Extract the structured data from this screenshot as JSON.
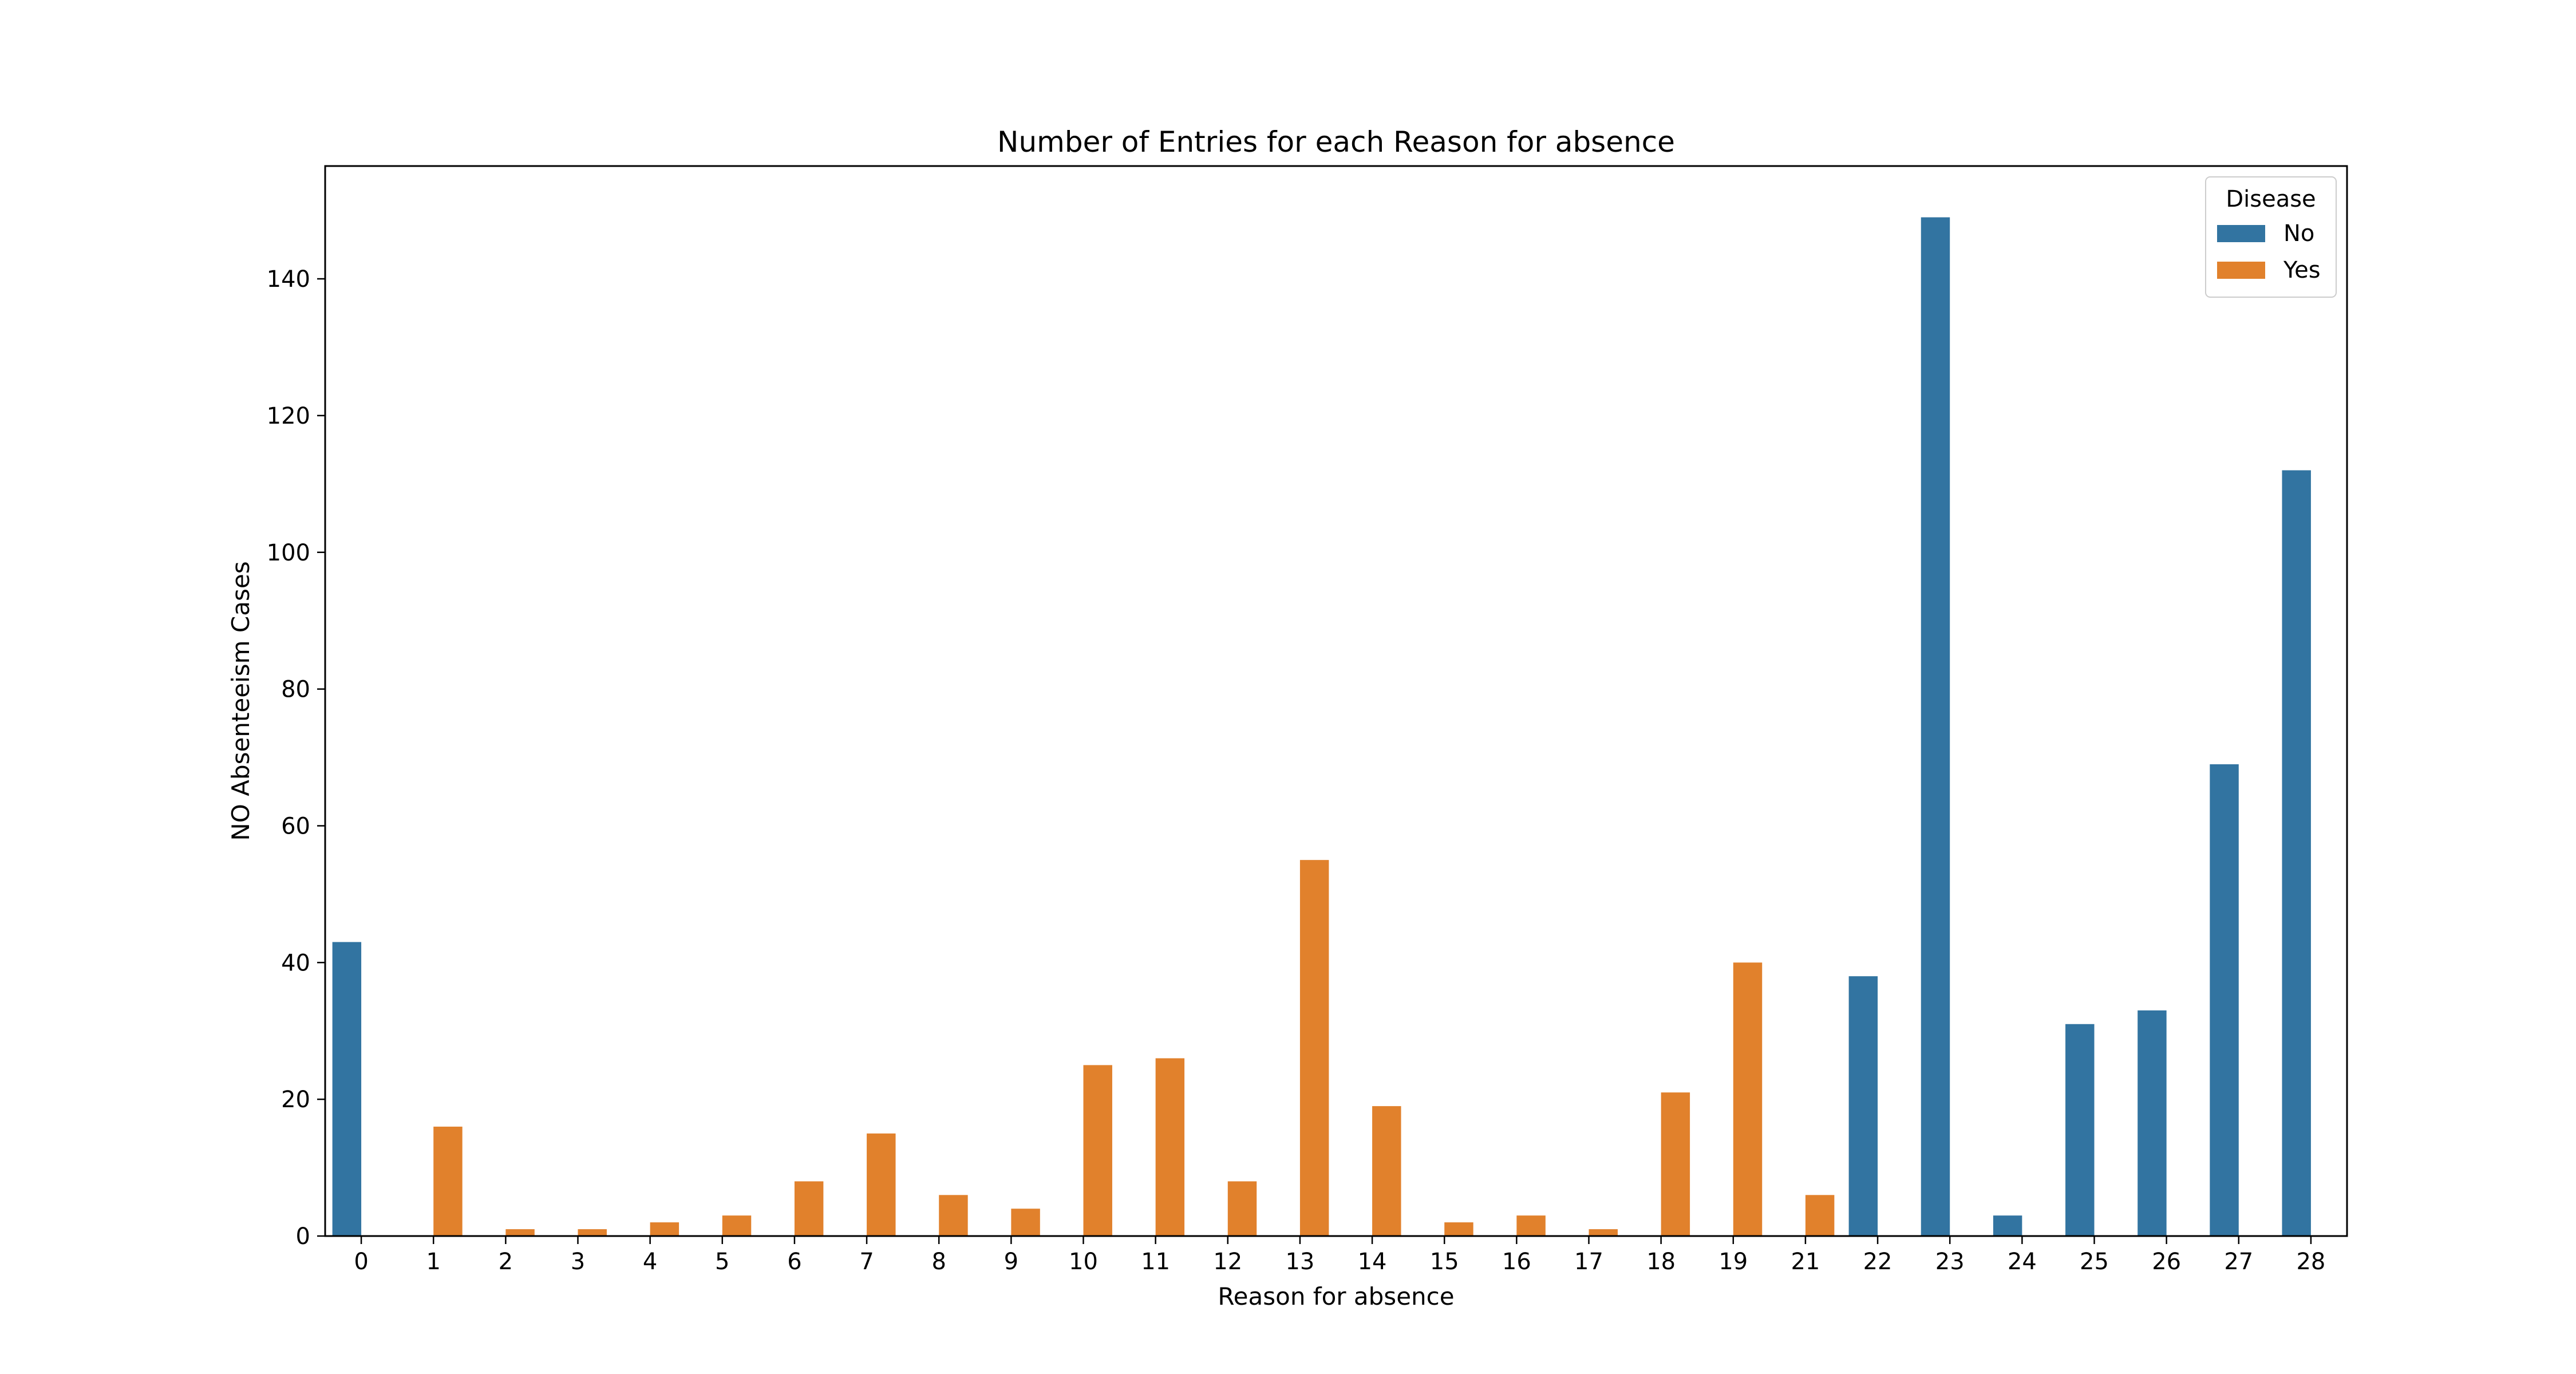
{
  "chart_data": {
    "type": "bar",
    "title": "Number of Entries for each Reason for absence",
    "xlabel": "Reason for absence",
    "ylabel": "NO Absenteeism Cases",
    "categories": [
      "0",
      "1",
      "2",
      "3",
      "4",
      "5",
      "6",
      "7",
      "8",
      "9",
      "10",
      "11",
      "12",
      "13",
      "14",
      "15",
      "16",
      "17",
      "18",
      "19",
      "21",
      "22",
      "23",
      "24",
      "25",
      "26",
      "27",
      "28"
    ],
    "series": [
      {
        "name": "No",
        "color": "#3274a1",
        "values": [
          43,
          null,
          null,
          null,
          null,
          null,
          null,
          null,
          null,
          null,
          null,
          null,
          null,
          null,
          null,
          null,
          null,
          null,
          null,
          null,
          null,
          38,
          149,
          3,
          31,
          33,
          69,
          112
        ]
      },
      {
        "name": "Yes",
        "color": "#e1812c",
        "values": [
          null,
          16,
          1,
          1,
          2,
          3,
          8,
          15,
          6,
          4,
          25,
          26,
          8,
          55,
          19,
          2,
          3,
          1,
          21,
          40,
          6,
          null,
          null,
          null,
          null,
          null,
          null,
          null
        ]
      }
    ],
    "yticks": [
      0,
      20,
      40,
      60,
      80,
      100,
      120,
      140
    ],
    "ylim": [
      0,
      156.5
    ],
    "legend": {
      "title": "Disease",
      "placement": "top-right"
    },
    "grid": false
  }
}
